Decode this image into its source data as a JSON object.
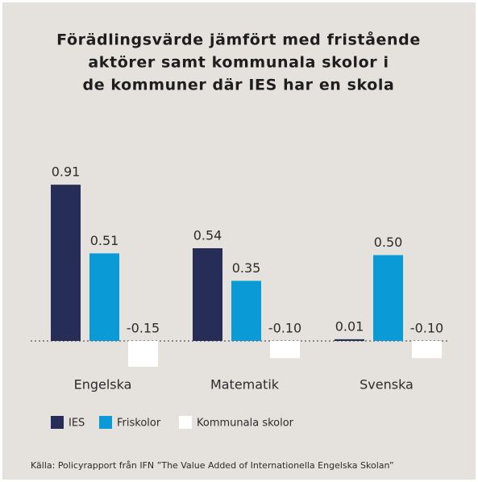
{
  "chart_data": {
    "type": "bar",
    "title": [
      "Förädlingsvärde jämfört med fristående",
      "aktörer samt kommunala skolor i",
      "de kommuner där IES har en skola"
    ],
    "categories": [
      "Engelska",
      "Matematik",
      "Svenska"
    ],
    "series": [
      {
        "name": "IES",
        "color": "#262d57",
        "values": [
          0.91,
          0.54,
          0.01
        ],
        "value_labels": [
          "0.91",
          "0.54",
          "0.01"
        ]
      },
      {
        "name": "Friskolor",
        "color": "#0a9ad6",
        "values": [
          0.51,
          0.35,
          0.5
        ],
        "value_labels": [
          "0.51",
          "0.35",
          "0.50"
        ]
      },
      {
        "name": "Kommunala skolor",
        "color": "#ffffff",
        "values": [
          -0.15,
          -0.1,
          -0.1
        ],
        "value_labels": [
          "-0.15",
          "-0.10",
          "-0.10"
        ]
      }
    ],
    "source": "Källa: Policyrapport från IFN ”The Value Added of Internationella Engelska Skolan”"
  }
}
